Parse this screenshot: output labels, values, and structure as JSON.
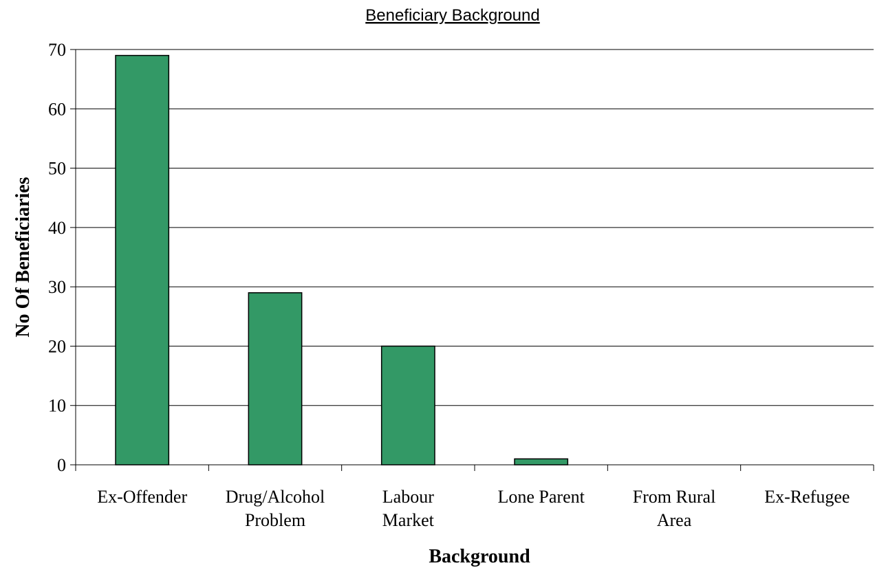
{
  "chart_data": {
    "type": "bar",
    "title": "Beneficiary Background",
    "xlabel": "Background",
    "ylabel": "No Of Beneficiaries",
    "categories": [
      [
        "Ex-Offender"
      ],
      [
        "Drug/Alcohol",
        "Problem"
      ],
      [
        "Labour",
        "Market"
      ],
      [
        "Lone Parent"
      ],
      [
        "From Rural",
        "Area"
      ],
      [
        "Ex-Refugee"
      ]
    ],
    "values": [
      69,
      29,
      20,
      1,
      0,
      0
    ],
    "ylim": [
      0,
      70
    ],
    "yticks": [
      0,
      10,
      20,
      30,
      40,
      50,
      60,
      70
    ],
    "grid": true,
    "legend": "none",
    "bar_color": "#339966",
    "bar_stroke": "#000000"
  }
}
